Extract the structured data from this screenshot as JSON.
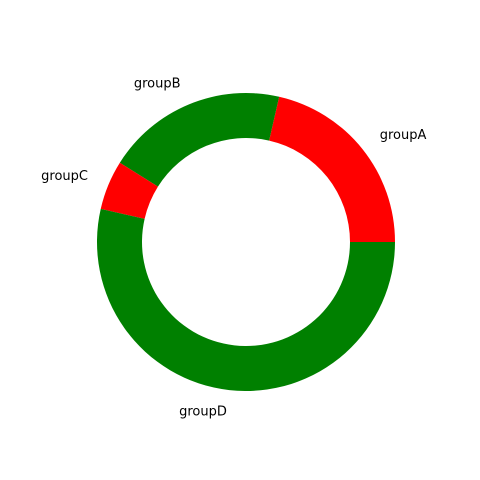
{
  "chart_data": {
    "type": "pie",
    "donut": true,
    "categories": [
      "groupA",
      "groupB",
      "groupC",
      "groupD"
    ],
    "values": [
      12,
      11,
      3,
      30
    ],
    "colors": [
      "#ff0000",
      "#008000",
      "#ff0000",
      "#008000"
    ],
    "legend": "none"
  }
}
